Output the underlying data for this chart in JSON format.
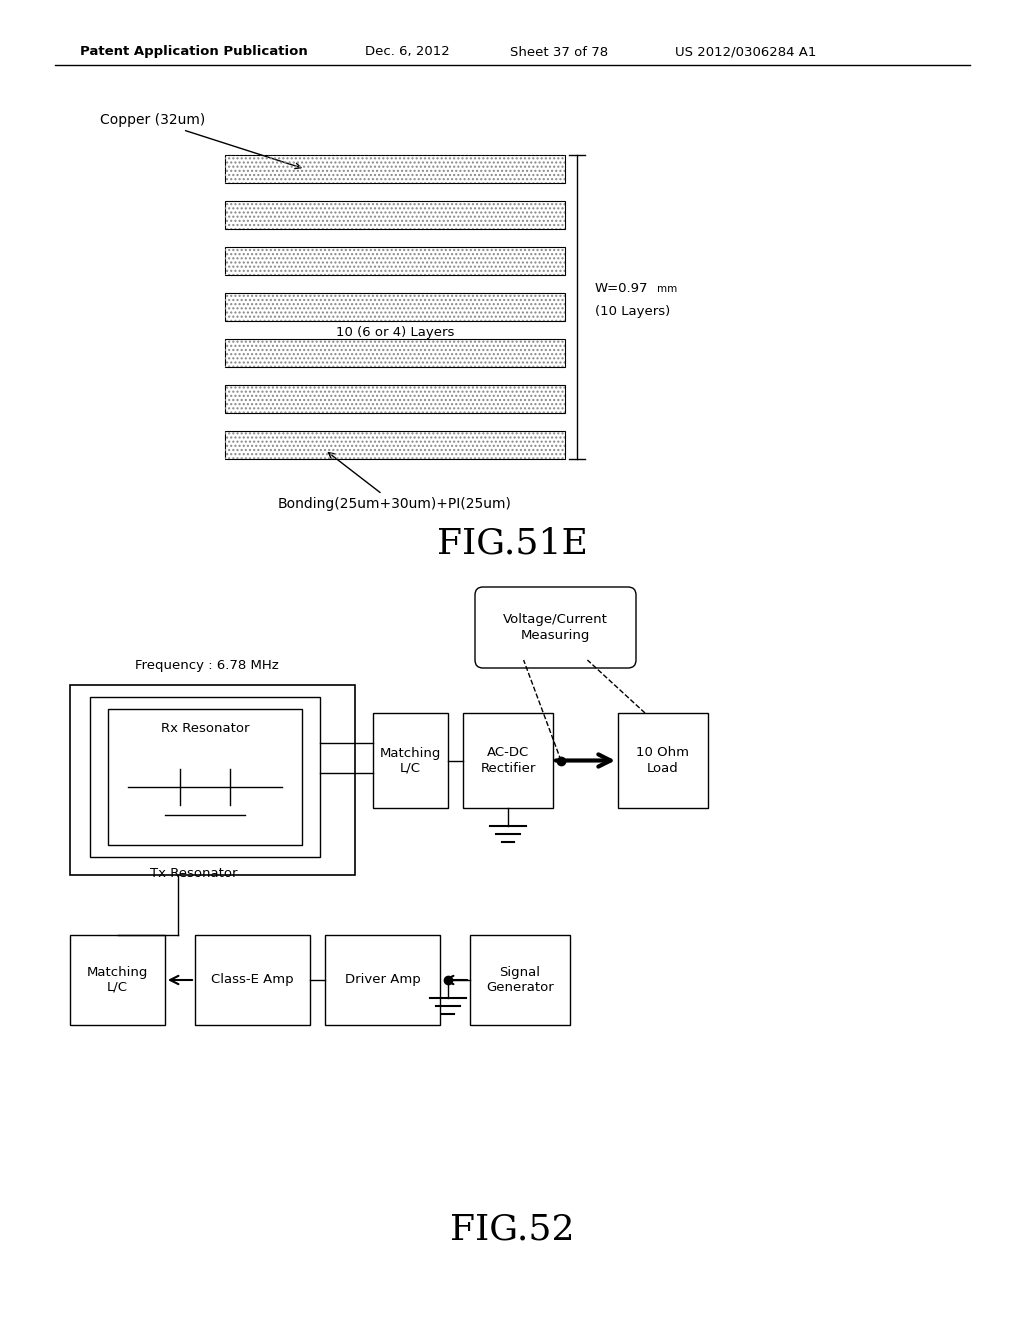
{
  "bg_color": "#ffffff",
  "header_text": "Patent Application Publication",
  "header_date": "Dec. 6, 2012",
  "header_sheet": "Sheet 37 of 78",
  "header_patent": "US 2012/0306284 A1",
  "fig51e_label": "FIG.51E",
  "fig52_label": "FIG.52",
  "copper_label": "Copper (32um)",
  "layer_label": "10 (6 or 4) Layers",
  "bonding_label": "Bonding(25um+30um)+PI(25um)",
  "num_layers": 7,
  "freq_label": "Frequency : 6.78 MHz",
  "vc_label": "Voltage/Current\nMeasuring",
  "rx_label": "Rx Resonator",
  "tx_label": "Tx Resonator",
  "matching_lc_label1": "Matching\nL/C",
  "acdc_label": "AC-DC\nRectifier",
  "load_label": "10 Ohm\nLoad",
  "matching_lc_label2": "Matching\nL/C",
  "classe_label": "Class-E Amp",
  "driver_label": "Driver Amp",
  "signal_label": "Signal\nGenerator"
}
